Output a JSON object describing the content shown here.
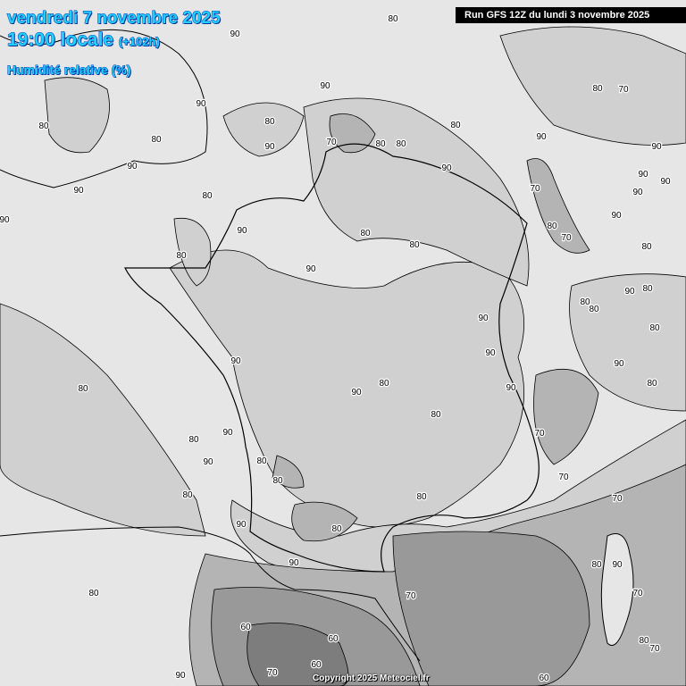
{
  "header": {
    "date": "vendredi 7 novembre 2025",
    "time": "19:00 locale",
    "lead": "(+102h)",
    "parameter": "Humidité relative (%)"
  },
  "run_info": "Run GFS 12Z du lundi 3 novembre 2025",
  "copyright": "Copyright 2025 Meteociel.fr",
  "legend_shades": {
    "above_90": "#e8e8e8",
    "80_90": "#d0d0d0",
    "70_80": "#b4b4b4",
    "60_70": "#999999",
    "below_60": "#7d7d7d"
  },
  "contour_labels": [
    "80",
    "90",
    "90",
    "90",
    "80",
    "80",
    "90",
    "90",
    "80",
    "90",
    "80",
    "80",
    "70",
    "80",
    "80",
    "80",
    "90",
    "90",
    "70",
    "80",
    "70",
    "80",
    "90",
    "90",
    "90",
    "80",
    "80",
    "90",
    "90",
    "90",
    "90",
    "80",
    "90",
    "80",
    "90",
    "80",
    "80",
    "80",
    "70",
    "90",
    "90",
    "90",
    "80",
    "80",
    "80",
    "80",
    "90",
    "90",
    "80",
    "80",
    "80",
    "90",
    "80",
    "70",
    "70",
    "70",
    "80",
    "80",
    "90",
    "90",
    "80",
    "70",
    "90",
    "60",
    "60",
    "70",
    "60",
    "70",
    "90",
    "80",
    "60",
    "80",
    "70",
    "90",
    "90"
  ]
}
